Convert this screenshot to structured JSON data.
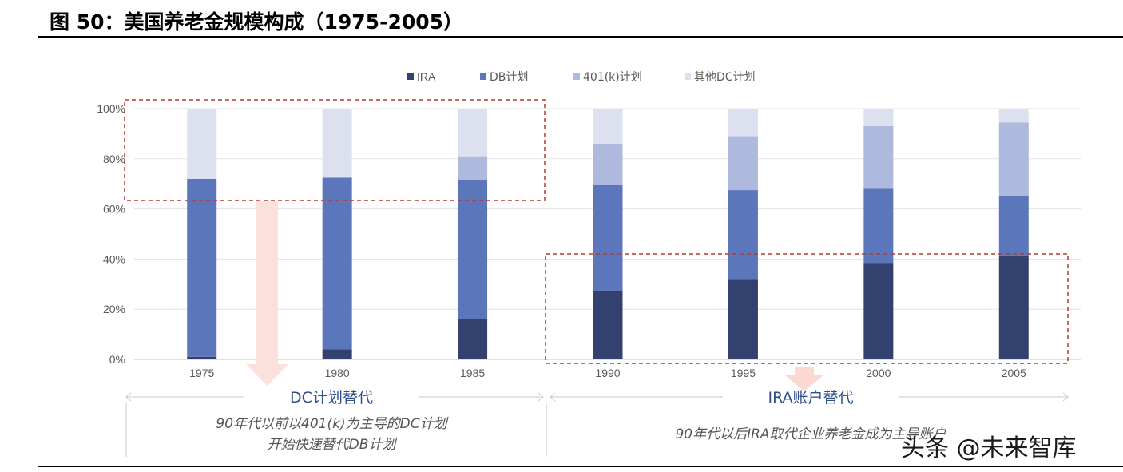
{
  "figure": {
    "title": "图 50：美国养老金规模构成（1975-2005）"
  },
  "chart_data": {
    "type": "bar",
    "stacked": true,
    "categories": [
      "1975",
      "1980",
      "1985",
      "1990",
      "1995",
      "2000",
      "2005"
    ],
    "series": [
      {
        "name": "IRA",
        "values": [
          1,
          4,
          16,
          27.5,
          32,
          38.5,
          41.5
        ]
      },
      {
        "name": "DB计划",
        "values": [
          71,
          68.5,
          55.5,
          42,
          35.5,
          29.5,
          23.5
        ]
      },
      {
        "name": "401(k)计划",
        "values": [
          0,
          0,
          9.5,
          16.5,
          21.5,
          25,
          29.5
        ]
      },
      {
        "name": "其他DC计划",
        "values": [
          28,
          27.5,
          19,
          14,
          11,
          7,
          5.5
        ]
      }
    ],
    "colors": [
      "#33416f",
      "#5b76bb",
      "#adb9dd",
      "#dde1ef"
    ],
    "ylim": [
      0,
      100
    ],
    "yticks": [
      "0%",
      "20%",
      "40%",
      "60%",
      "80%",
      "100%"
    ],
    "grid": true,
    "legend_position": "top",
    "annotations": {
      "left_label": "DC计划替代",
      "left_note_line1": "90年代以前以401(k)为主导的DC计划",
      "left_note_line2": "开始快速替代DB计划",
      "right_label": "IRA账户替代",
      "right_note": "90年代以后IRA取代企业养老金成为主导账户"
    }
  },
  "watermark": "头条 @未来智库"
}
